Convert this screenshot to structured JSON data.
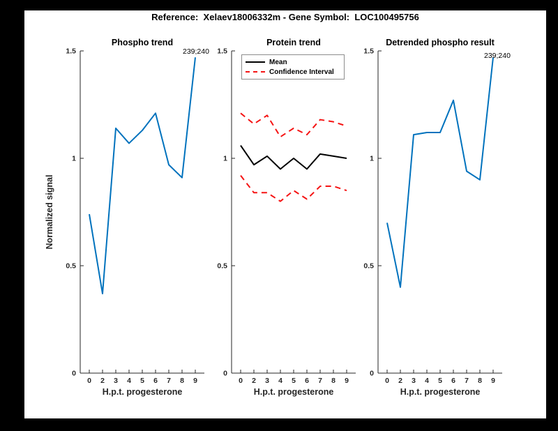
{
  "figure_title": "Reference:  Xelaev18006332m - Gene Symbol:  LOC100495756",
  "xlabel": "H.p.t. progesterone",
  "ylabel": "Normalized signal",
  "colors": {
    "blue": "#0072BD",
    "red": "#f51414",
    "black": "#000000"
  },
  "axes": {
    "x_ticks": [
      "0",
      "2",
      "3",
      "4",
      "5",
      "6",
      "7",
      "8",
      "9"
    ],
    "y_ticks": [
      "0",
      "0.5",
      "1",
      "1.5"
    ],
    "ylim": [
      0,
      1.5
    ],
    "grid": false
  },
  "legend": {
    "position": "top-left of middle plot",
    "entries": [
      {
        "label": "Mean",
        "style": "solid",
        "color": "#000000"
      },
      {
        "label": "Confidence Interval",
        "style": "dashed",
        "color": "#f51414"
      }
    ]
  },
  "chart_data": [
    {
      "type": "line",
      "title": "Phospho trend",
      "xlabel": "H.p.t. progesterone",
      "ylabel": "Normalized signal",
      "x": [
        0,
        2,
        3,
        4,
        5,
        6,
        7,
        8,
        9
      ],
      "ylim": [
        0,
        1.5
      ],
      "annotation": "239;240",
      "series": [
        {
          "name": "phospho-line",
          "color": "blue",
          "style": "solid",
          "values": [
            0.74,
            0.37,
            1.14,
            1.07,
            1.13,
            1.21,
            0.97,
            0.91,
            1.47
          ]
        }
      ]
    },
    {
      "type": "line",
      "title": "Protein trend",
      "xlabel": "H.p.t. progesterone",
      "x": [
        0,
        2,
        3,
        4,
        5,
        6,
        7,
        8,
        9
      ],
      "ylim": [
        0,
        1.5
      ],
      "series": [
        {
          "name": "mean-line",
          "color": "black",
          "style": "solid",
          "values": [
            1.06,
            0.97,
            1.01,
            0.95,
            1.0,
            0.95,
            1.02,
            1.01,
            1.0
          ]
        },
        {
          "name": "ci-upper-line",
          "color": "red",
          "style": "dashed",
          "values": [
            1.21,
            1.16,
            1.2,
            1.1,
            1.14,
            1.11,
            1.18,
            1.17,
            1.15
          ]
        },
        {
          "name": "ci-lower-line",
          "color": "red",
          "style": "dashed",
          "values": [
            0.92,
            0.84,
            0.84,
            0.8,
            0.85,
            0.81,
            0.87,
            0.87,
            0.85
          ]
        }
      ]
    },
    {
      "type": "line",
      "title": "Detrended phospho result",
      "xlabel": "H.p.t. progesterone",
      "x": [
        0,
        2,
        3,
        4,
        5,
        6,
        7,
        8,
        9
      ],
      "ylim": [
        0,
        1.5
      ],
      "annotation": "239;240",
      "series": [
        {
          "name": "detrended-line",
          "color": "blue",
          "style": "solid",
          "values": [
            0.7,
            0.4,
            1.11,
            1.12,
            1.12,
            1.27,
            0.94,
            0.9,
            1.47
          ]
        }
      ]
    }
  ]
}
